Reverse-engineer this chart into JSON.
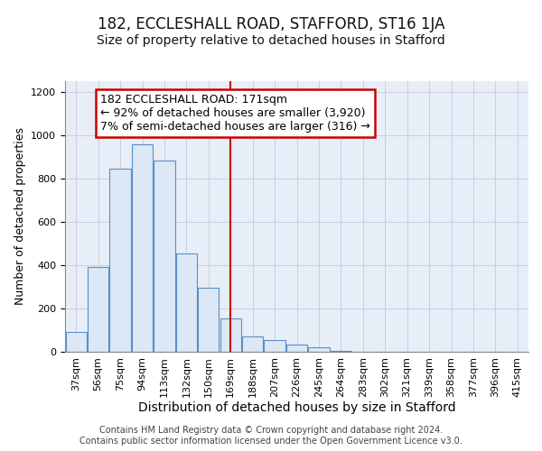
{
  "title": "182, ECCLESHALL ROAD, STAFFORD, ST16 1JA",
  "subtitle": "Size of property relative to detached houses in Stafford",
  "xlabel": "Distribution of detached houses by size in Stafford",
  "ylabel": "Number of detached properties",
  "categories": [
    "37sqm",
    "56sqm",
    "75sqm",
    "94sqm",
    "113sqm",
    "132sqm",
    "150sqm",
    "169sqm",
    "188sqm",
    "207sqm",
    "226sqm",
    "245sqm",
    "264sqm",
    "283sqm",
    "302sqm",
    "321sqm",
    "339sqm",
    "358sqm",
    "377sqm",
    "396sqm",
    "415sqm"
  ],
  "values": [
    90,
    390,
    845,
    960,
    885,
    455,
    295,
    155,
    70,
    55,
    35,
    20,
    3,
    0,
    0,
    0,
    2,
    0,
    0,
    0,
    2
  ],
  "bar_color": "#dce8f5",
  "bar_edge_color": "#5b8ec4",
  "red_line_index": 7,
  "annotation_line1": "182 ECCLESHALL ROAD: 171sqm",
  "annotation_line2": "← 92% of detached houses are smaller (3,920)",
  "annotation_line3": "7% of semi-detached houses are larger (316) →",
  "annotation_box_color": "#ffffff",
  "annotation_box_edge": "#cc0000",
  "ylim": [
    0,
    1250
  ],
  "yticks": [
    0,
    200,
    400,
    600,
    800,
    1000,
    1200
  ],
  "grid_color": "#c8d0e0",
  "background_color": "#e8eef8",
  "footer_text": "Contains HM Land Registry data © Crown copyright and database right 2024.\nContains public sector information licensed under the Open Government Licence v3.0.",
  "title_fontsize": 12,
  "subtitle_fontsize": 10,
  "ylabel_fontsize": 9,
  "xlabel_fontsize": 10,
  "tick_fontsize": 8,
  "footer_fontsize": 7,
  "annot_fontsize": 9
}
